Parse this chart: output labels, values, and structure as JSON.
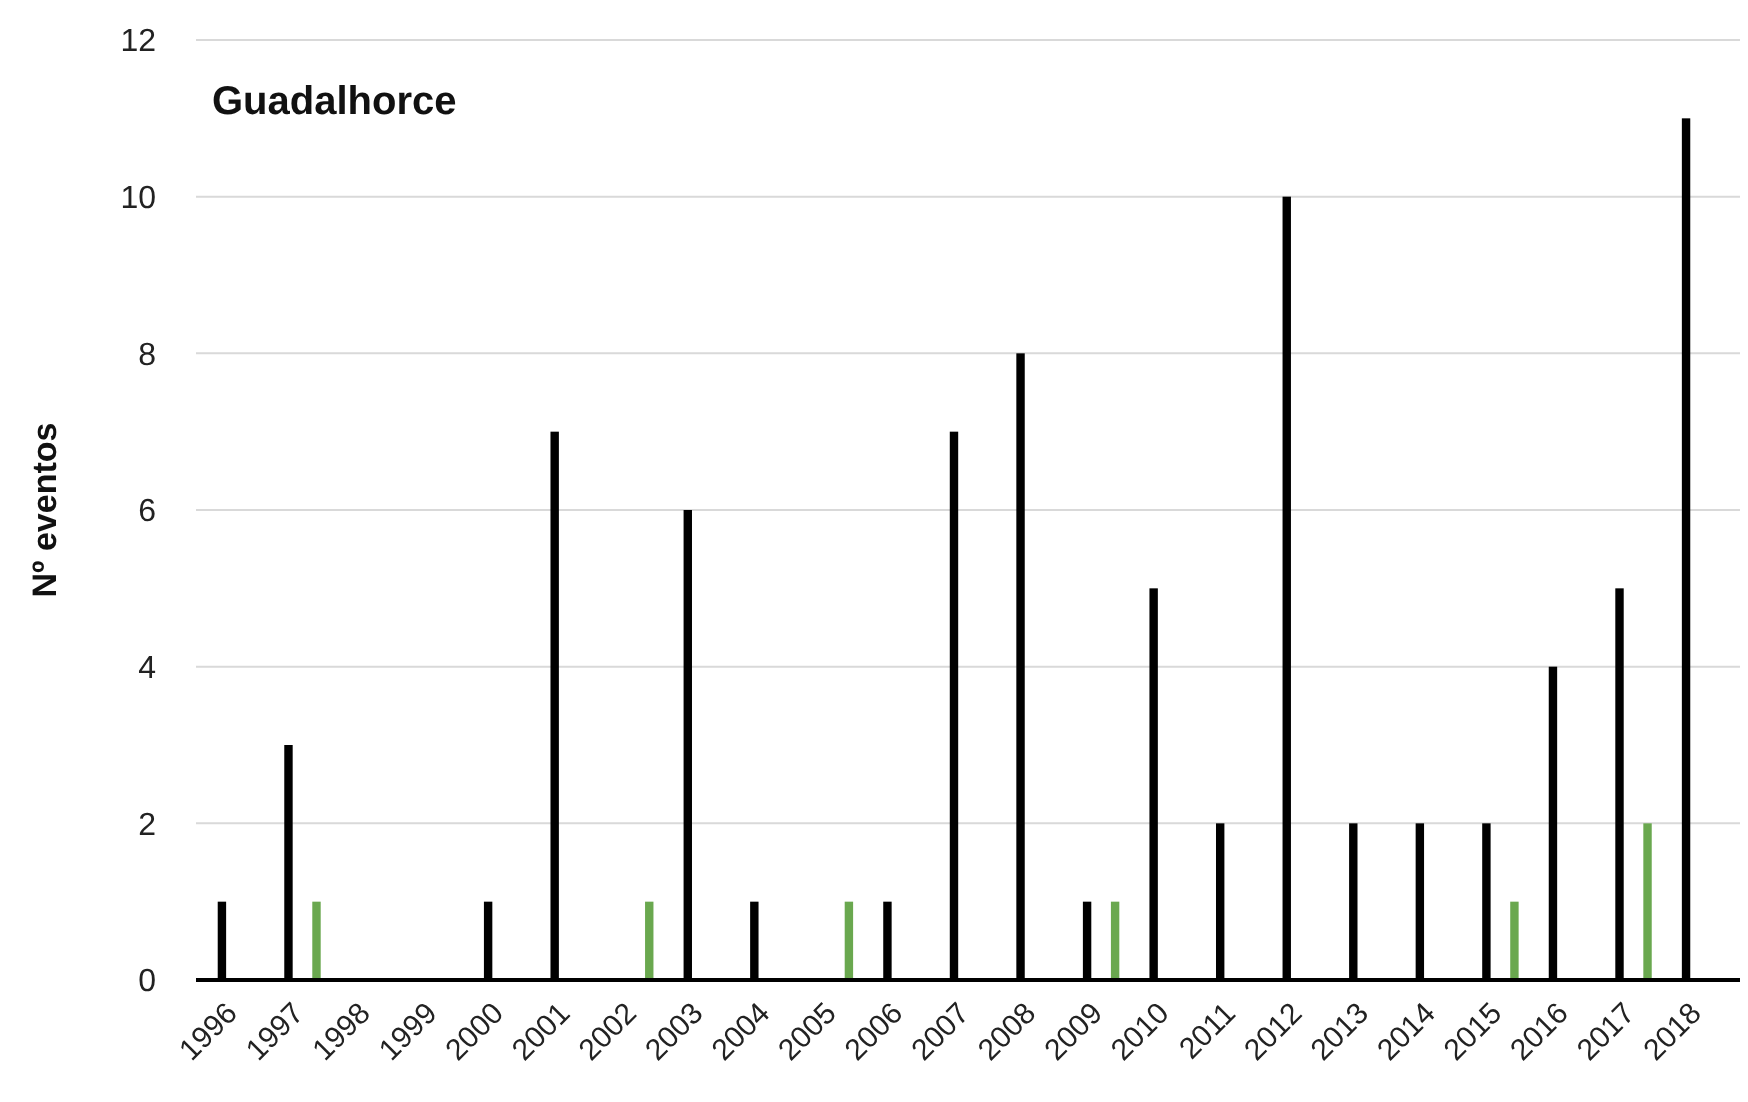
{
  "chart_data": {
    "type": "bar",
    "title": "Guadalhorce",
    "ylabel": "Nº eventos",
    "categories": [
      "1996",
      "1997",
      "1998",
      "1999",
      "2000",
      "2001",
      "2002",
      "2003",
      "2004",
      "2005",
      "2006",
      "2007",
      "2008",
      "2009",
      "2010",
      "2011",
      "2012",
      "2013",
      "2014",
      "2015",
      "2016",
      "2017",
      "2018"
    ],
    "series": [
      {
        "color": "#000000",
        "values": [
          1,
          3,
          0,
          0,
          1,
          7,
          0,
          6,
          1,
          0,
          1,
          7,
          8,
          1,
          5,
          2,
          10,
          2,
          2,
          2,
          4,
          5,
          11
        ]
      },
      {
        "color": "#6aa84f",
        "values": [
          0,
          1,
          0,
          0,
          0,
          0,
          1,
          0,
          0,
          1,
          0,
          0,
          0,
          1,
          0,
          0,
          0,
          0,
          0,
          1,
          0,
          2,
          0
        ]
      }
    ],
    "ylim": [
      0,
      12
    ],
    "yticks": [
      0,
      2,
      4,
      6,
      8,
      10,
      12
    ],
    "grid": "y"
  }
}
